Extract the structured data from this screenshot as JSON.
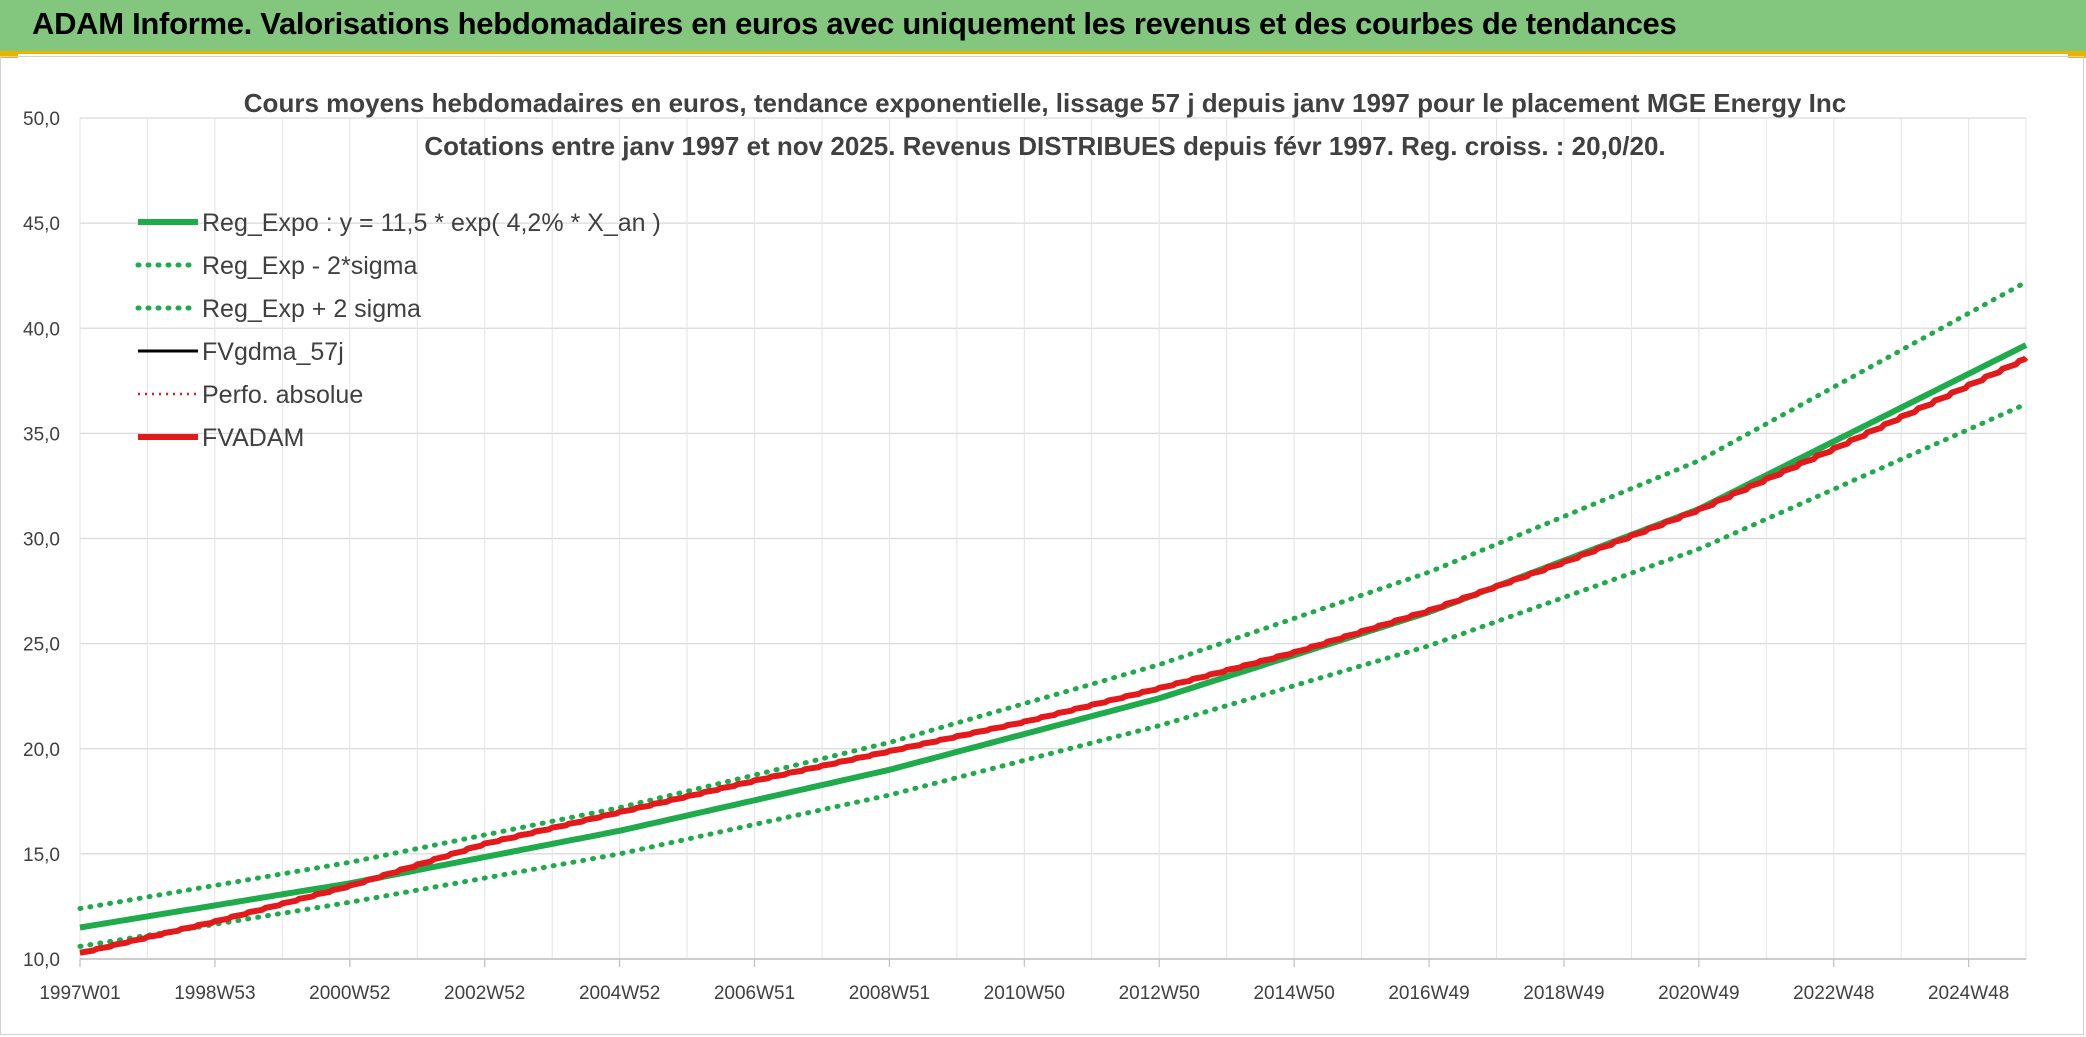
{
  "banner": {
    "title": "ADAM Informe. Valorisations hebdomadaires en euros avec uniquement les revenus et des courbes de tendances"
  },
  "chart_data": {
    "type": "line",
    "title": "Cours moyens hebdomadaires en euros, tendance exponentielle, lissage 57 j depuis janv 1997 pour le placement MGE Energy Inc",
    "subtitle": "Cotations entre janv 1997 et nov 2025. Revenus DISTRIBUES depuis févr 1997. Reg. croiss. : 20,0/20.",
    "xlabel": "",
    "ylabel": "",
    "ylim": [
      10,
      50
    ],
    "yticks": [
      "10,0",
      "15,0",
      "20,0",
      "25,0",
      "30,0",
      "35,0",
      "40,0",
      "45,0",
      "50,0"
    ],
    "xlim": [
      1997.0,
      2025.85
    ],
    "xtick_labels": [
      "1997W01",
      "1998W53",
      "2000W52",
      "2002W52",
      "2004W52",
      "2006W51",
      "2008W51",
      "2010W50",
      "2012W50",
      "2014W50",
      "2016W49",
      "2018W49",
      "2020W49",
      "2022W48",
      "2024W48"
    ],
    "xtick_years": [
      1997.0,
      1999.0,
      2001.0,
      2003.0,
      2005.0,
      2007.0,
      2009.0,
      2011.0,
      2013.0,
      2015.0,
      2017.0,
      2019.0,
      2021.0,
      2023.0,
      2025.0
    ],
    "grid": true,
    "legend_position": "top-left",
    "series": [
      {
        "name": "Reg_Expo : y = 11,5 * exp( 4,2% *  X_an )",
        "color": "#1faa4b",
        "style": "solid",
        "x": [
          1997,
          2001,
          2005,
          2009,
          2013,
          2017,
          2021,
          2025.85
        ],
        "values": [
          11.5,
          13.6,
          16.1,
          19.0,
          22.4,
          26.5,
          31.4,
          39.2
        ]
      },
      {
        "name": "Reg_Exp - 2*sigma",
        "color": "#1faa4b",
        "style": "dotted",
        "x": [
          1997,
          2001,
          2005,
          2009,
          2013,
          2017,
          2021,
          2025.85
        ],
        "values": [
          10.6,
          12.7,
          15.0,
          17.8,
          21.1,
          24.9,
          29.5,
          36.4
        ]
      },
      {
        "name": "Reg_Exp + 2 sigma",
        "color": "#1faa4b",
        "style": "dotted",
        "x": [
          1997,
          2001,
          2005,
          2009,
          2013,
          2017,
          2021,
          2025.85
        ],
        "values": [
          12.4,
          14.6,
          17.2,
          20.3,
          24.0,
          28.4,
          33.7,
          42.2
        ]
      },
      {
        "name": "FVgdma_57j",
        "color": "#000000",
        "style": "solid",
        "x": [
          1997,
          1999,
          2001,
          2003,
          2005,
          2007,
          2009,
          2011,
          2013,
          2015,
          2017,
          2019,
          2021,
          2023,
          2025.85
        ],
        "values": [
          10.3,
          11.8,
          13.5,
          15.5,
          17.0,
          18.5,
          19.9,
          21.3,
          22.9,
          24.6,
          26.6,
          28.9,
          31.4,
          34.3,
          38.6
        ]
      },
      {
        "name": "Perfo. absolue",
        "color": "#e31a1c",
        "style": "dotted",
        "x": [
          1997,
          1999,
          2001,
          2003,
          2005,
          2007,
          2009,
          2011,
          2013,
          2015,
          2017,
          2019,
          2021,
          2023,
          2025.85
        ],
        "values": [
          10.3,
          11.8,
          13.5,
          15.5,
          17.0,
          18.5,
          19.9,
          21.3,
          22.9,
          24.6,
          26.6,
          28.9,
          31.4,
          34.3,
          38.6
        ]
      },
      {
        "name": "FVADAM",
        "color": "#e31a1c",
        "style": "solid",
        "x": [
          1997,
          1999,
          2001,
          2003,
          2005,
          2007,
          2009,
          2011,
          2013,
          2015,
          2017,
          2019,
          2021,
          2023,
          2025.85
        ],
        "values": [
          10.3,
          11.8,
          13.5,
          15.5,
          17.0,
          18.5,
          19.9,
          21.3,
          22.9,
          24.6,
          26.6,
          28.9,
          31.4,
          34.3,
          38.6
        ]
      }
    ]
  }
}
